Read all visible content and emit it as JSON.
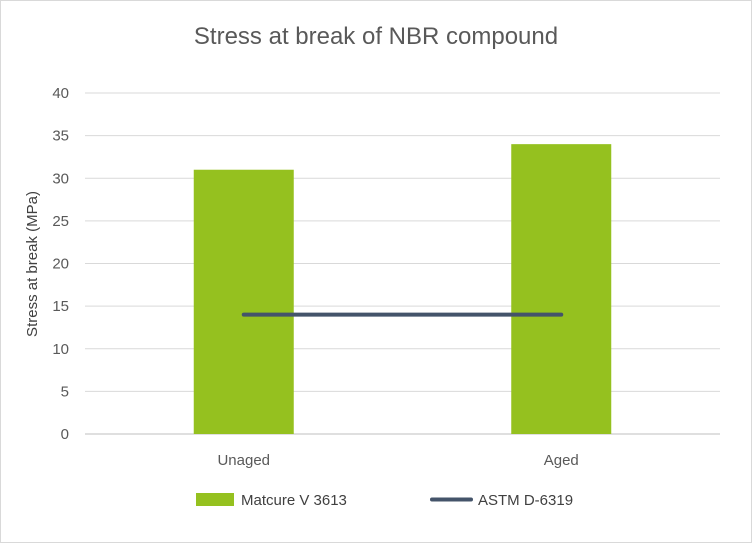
{
  "chart_data": {
    "type": "bar",
    "title": "Stress at break of NBR compound",
    "xlabel": "",
    "ylabel": "Stress at break (MPa)",
    "categories": [
      "Unaged",
      "Aged"
    ],
    "ylim": [
      0,
      40
    ],
    "yticks": [
      0,
      5,
      10,
      15,
      20,
      25,
      30,
      35,
      40
    ],
    "grid": true,
    "legend_position": "bottom",
    "series": [
      {
        "name": "Matcure V 3613",
        "kind": "bar",
        "color": "#95C11F",
        "values": [
          31,
          34
        ]
      },
      {
        "name": "ASTM D-6319",
        "kind": "line",
        "color": "#44546A",
        "values": [
          14,
          14
        ]
      }
    ]
  }
}
